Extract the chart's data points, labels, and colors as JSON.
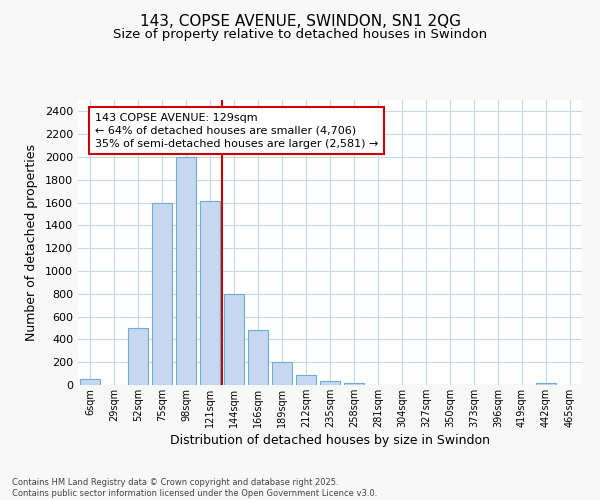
{
  "title1": "143, COPSE AVENUE, SWINDON, SN1 2QG",
  "title2": "Size of property relative to detached houses in Swindon",
  "xlabel": "Distribution of detached houses by size in Swindon",
  "ylabel": "Number of detached properties",
  "bar_labels": [
    "6sqm",
    "29sqm",
    "52sqm",
    "75sqm",
    "98sqm",
    "121sqm",
    "144sqm",
    "166sqm",
    "189sqm",
    "212sqm",
    "235sqm",
    "258sqm",
    "281sqm",
    "304sqm",
    "327sqm",
    "350sqm",
    "373sqm",
    "396sqm",
    "419sqm",
    "442sqm",
    "465sqm"
  ],
  "bar_values": [
    50,
    0,
    500,
    1600,
    2000,
    1610,
    800,
    480,
    200,
    90,
    35,
    20,
    0,
    0,
    0,
    0,
    0,
    0,
    0,
    20,
    0
  ],
  "bar_color": "#c5d8f0",
  "bar_edge_color": "#6baed6",
  "vline_color": "#cc0000",
  "vline_x": 5.5,
  "annotation_text": "143 COPSE AVENUE: 129sqm\n← 64% of detached houses are smaller (4,706)\n35% of semi-detached houses are larger (2,581) →",
  "ylim": [
    0,
    2500
  ],
  "yticks": [
    0,
    200,
    400,
    600,
    800,
    1000,
    1200,
    1400,
    1600,
    1800,
    2000,
    2200,
    2400
  ],
  "fig_bg_color": "#f8f8f8",
  "plot_bg_color": "#ffffff",
  "grid_color": "#c8d8e8",
  "footer_text": "Contains HM Land Registry data © Crown copyright and database right 2025.\nContains public sector information licensed under the Open Government Licence v3.0."
}
